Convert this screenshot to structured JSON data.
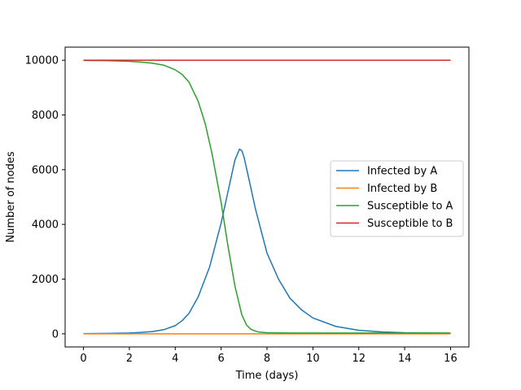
{
  "chart_data": {
    "type": "line",
    "title": "",
    "xlabel": "Time (days)",
    "ylabel": "Number of nodes",
    "xlim": [
      -0.8,
      16.8
    ],
    "ylim": [
      -480,
      10480
    ],
    "xticks": [
      0,
      2,
      4,
      6,
      8,
      10,
      12,
      14,
      16
    ],
    "yticks": [
      0,
      2000,
      4000,
      6000,
      8000,
      10000
    ],
    "xtick_labels": [
      "0",
      "2",
      "4",
      "6",
      "8",
      "10",
      "12",
      "14",
      "16"
    ],
    "ytick_labels": [
      "0",
      "2000",
      "4000",
      "6000",
      "8000",
      "10000"
    ],
    "grid": false,
    "legend_position": "center-right",
    "series": [
      {
        "name": "Infected by A",
        "color": "#1f77b4",
        "x": [
          0,
          1,
          2,
          2.5,
          3,
          3.5,
          4,
          4.3,
          4.6,
          5,
          5.5,
          6,
          6.3,
          6.6,
          6.8,
          6.9,
          7,
          7.2,
          7.5,
          8,
          8.5,
          9,
          9.5,
          10,
          11,
          12,
          13,
          14,
          16
        ],
        "values": [
          5,
          15,
          30,
          50,
          80,
          150,
          300,
          480,
          750,
          1350,
          2450,
          4050,
          5200,
          6350,
          6750,
          6700,
          6450,
          5700,
          4550,
          2950,
          2000,
          1300,
          880,
          580,
          270,
          130,
          70,
          40,
          20
        ]
      },
      {
        "name": "Infected by B",
        "color": "#ff7f0e",
        "x": [
          0,
          16
        ],
        "values": [
          0,
          0
        ]
      },
      {
        "name": "Susceptible to A",
        "color": "#2ca02c",
        "x": [
          0,
          1,
          2,
          2.5,
          3,
          3.5,
          4,
          4.3,
          4.6,
          5,
          5.3,
          5.6,
          6,
          6.3,
          6.6,
          6.9,
          7.1,
          7.3,
          7.6,
          8,
          9,
          10,
          12,
          14,
          16
        ],
        "values": [
          9995,
          9985,
          9960,
          9935,
          9895,
          9820,
          9650,
          9480,
          9200,
          8500,
          7700,
          6600,
          4800,
          3200,
          1750,
          700,
          330,
          160,
          70,
          40,
          30,
          30,
          30,
          30,
          30
        ]
      },
      {
        "name": "Susceptible to B",
        "color": "#d62728",
        "x": [
          0,
          16
        ],
        "values": [
          10000,
          10000
        ]
      }
    ]
  }
}
